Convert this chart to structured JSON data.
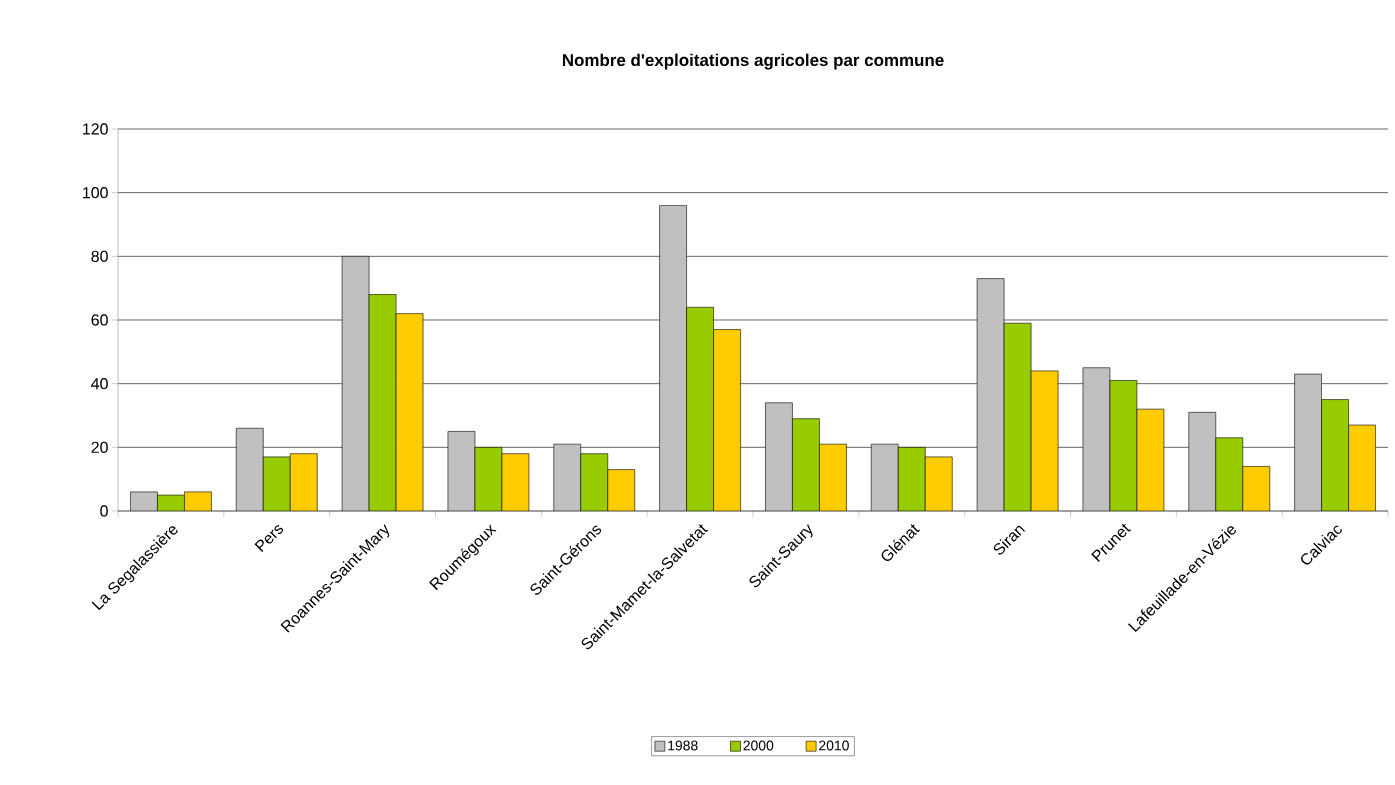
{
  "chart_data": {
    "type": "bar",
    "title": "Nombre d'exploitations agricoles par commune",
    "categories": [
      "La Segalassière",
      "Pers",
      "Roannes-Saint-Mary",
      "Roumégoux",
      "Saint-Gérons",
      "Saint-Mamet-la-Salvetat",
      "Saint-Saury",
      "Glénat",
      "Siran",
      "Prunet",
      "Lafeuillade-en-Vézie",
      "Calviac"
    ],
    "series": [
      {
        "name": "1988",
        "color": "#c0c0c0",
        "values": [
          6,
          26,
          80,
          25,
          21,
          96,
          34,
          21,
          73,
          45,
          31,
          43
        ]
      },
      {
        "name": "2000",
        "color": "#99cc00",
        "values": [
          5,
          17,
          68,
          20,
          18,
          64,
          29,
          20,
          59,
          41,
          23,
          35
        ]
      },
      {
        "name": "2010",
        "color": "#ffcc00",
        "values": [
          6,
          18,
          62,
          18,
          13,
          57,
          21,
          17,
          44,
          32,
          14,
          27
        ]
      }
    ],
    "ylim": [
      0,
      120
    ],
    "yticks": [
      0,
      20,
      40,
      60,
      80,
      100,
      120
    ],
    "grid": "y",
    "legend": "bottom"
  }
}
